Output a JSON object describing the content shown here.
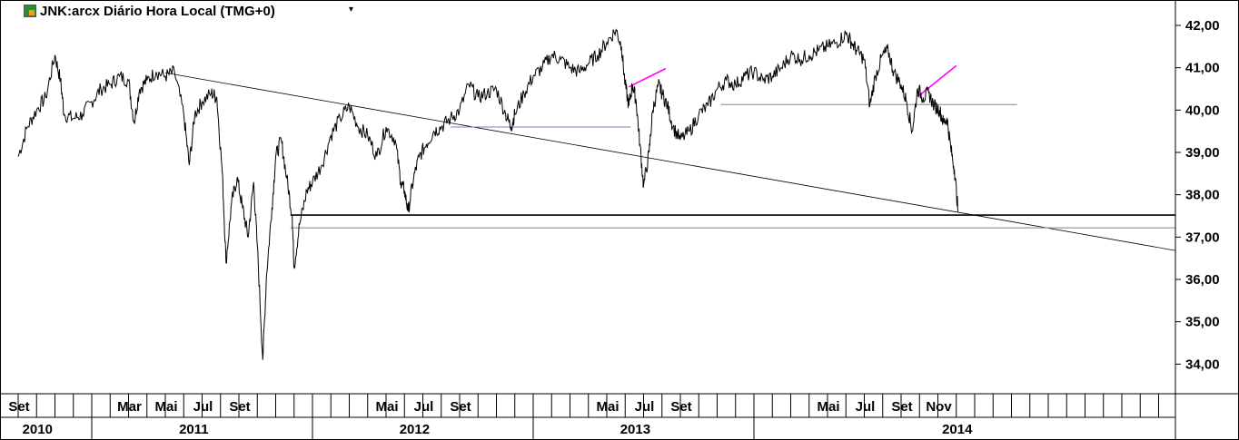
{
  "chart_data": {
    "type": "line",
    "title": "JNK:arcx Diário Hora Local (TMG+0)",
    "ylim": [
      33.3,
      42.6
    ],
    "y_ticks": [
      "34,00",
      "35,00",
      "36,00",
      "37,00",
      "38,00",
      "39,00",
      "40,00",
      "41,00",
      "42,00"
    ],
    "y_tick_values": [
      34,
      35,
      36,
      37,
      38,
      39,
      40,
      41,
      42
    ],
    "month_labels": [
      {
        "label": "Set",
        "t": 0.0
      },
      {
        "label": "Mar",
        "t": 6.0
      },
      {
        "label": "Mai",
        "t": 8.0
      },
      {
        "label": "Jul",
        "t": 10.0
      },
      {
        "label": "Set",
        "t": 12.0
      },
      {
        "label": "Mai",
        "t": 20.0
      },
      {
        "label": "Jul",
        "t": 22.0
      },
      {
        "label": "Set",
        "t": 24.0
      },
      {
        "label": "Mai",
        "t": 32.0
      },
      {
        "label": "Jul",
        "t": 34.0
      },
      {
        "label": "Set",
        "t": 36.0
      },
      {
        "label": "Mai",
        "t": 44.0
      },
      {
        "label": "Jul",
        "t": 46.0
      },
      {
        "label": "Set",
        "t": 48.0
      },
      {
        "label": "Nov",
        "t": 50.0
      }
    ],
    "year_labels": [
      {
        "label": "2010",
        "t": 1.0
      },
      {
        "label": "2011",
        "t": 9.5
      },
      {
        "label": "2012",
        "t": 21.5
      },
      {
        "label": "2013",
        "t": 33.5
      },
      {
        "label": "2014",
        "t": 51.0
      }
    ],
    "t_unit": "months since Sep 2010",
    "series": [
      {
        "color": "#000000",
        "points": [
          [
            0.0,
            38.9
          ],
          [
            0.5,
            39.6
          ],
          [
            1.0,
            40.0
          ],
          [
            1.5,
            40.3
          ],
          [
            2.0,
            41.3
          ],
          [
            2.3,
            40.7
          ],
          [
            2.5,
            39.9
          ],
          [
            3.0,
            39.8
          ],
          [
            3.5,
            39.9
          ],
          [
            4.0,
            40.2
          ],
          [
            4.5,
            40.5
          ],
          [
            5.0,
            40.6
          ],
          [
            5.5,
            40.8
          ],
          [
            6.0,
            40.7
          ],
          [
            6.3,
            39.7
          ],
          [
            6.6,
            40.5
          ],
          [
            7.0,
            40.7
          ],
          [
            7.5,
            40.9
          ],
          [
            8.0,
            40.8
          ],
          [
            8.5,
            40.9
          ],
          [
            9.0,
            39.9
          ],
          [
            9.3,
            38.7
          ],
          [
            9.6,
            39.9
          ],
          [
            10.0,
            40.2
          ],
          [
            10.5,
            40.4
          ],
          [
            10.8,
            40.3
          ],
          [
            11.1,
            38.5
          ],
          [
            11.3,
            36.4
          ],
          [
            11.6,
            37.8
          ],
          [
            11.9,
            38.4
          ],
          [
            12.2,
            37.7
          ],
          [
            12.5,
            37.0
          ],
          [
            12.8,
            38.3
          ],
          [
            13.0,
            36.8
          ],
          [
            13.3,
            34.1
          ],
          [
            13.5,
            36.1
          ],
          [
            13.8,
            37.7
          ],
          [
            14.0,
            38.9
          ],
          [
            14.3,
            39.3
          ],
          [
            14.6,
            38.4
          ],
          [
            14.9,
            37.5
          ],
          [
            15.0,
            36.3
          ],
          [
            15.3,
            37.3
          ],
          [
            15.7,
            38.1
          ],
          [
            16.0,
            38.3
          ],
          [
            16.5,
            38.7
          ],
          [
            17.0,
            39.4
          ],
          [
            17.5,
            39.8
          ],
          [
            18.0,
            40.1
          ],
          [
            18.5,
            39.6
          ],
          [
            19.0,
            39.4
          ],
          [
            19.5,
            38.9
          ],
          [
            20.0,
            39.6
          ],
          [
            20.5,
            39.3
          ],
          [
            20.8,
            38.3
          ],
          [
            21.0,
            38.1
          ],
          [
            21.2,
            37.6
          ],
          [
            21.5,
            38.4
          ],
          [
            21.8,
            38.9
          ],
          [
            22.2,
            39.2
          ],
          [
            22.6,
            39.5
          ],
          [
            23.0,
            39.6
          ],
          [
            23.5,
            39.8
          ],
          [
            24.0,
            40.0
          ],
          [
            24.5,
            40.6
          ],
          [
            25.0,
            40.3
          ],
          [
            25.5,
            40.4
          ],
          [
            26.0,
            40.5
          ],
          [
            26.5,
            39.9
          ],
          [
            26.8,
            39.6
          ],
          [
            27.0,
            39.9
          ],
          [
            27.5,
            40.4
          ],
          [
            28.0,
            40.8
          ],
          [
            28.5,
            41.0
          ],
          [
            29.0,
            41.3
          ],
          [
            29.5,
            41.2
          ],
          [
            30.0,
            41.0
          ],
          [
            30.5,
            40.9
          ],
          [
            31.0,
            41.1
          ],
          [
            31.5,
            41.3
          ],
          [
            32.0,
            41.6
          ],
          [
            32.5,
            41.9
          ],
          [
            32.8,
            41.5
          ],
          [
            33.0,
            40.6
          ],
          [
            33.2,
            40.1
          ],
          [
            33.4,
            40.6
          ],
          [
            33.6,
            40.2
          ],
          [
            33.8,
            39.2
          ],
          [
            34.0,
            38.2
          ],
          [
            34.3,
            39.0
          ],
          [
            34.5,
            40.0
          ],
          [
            34.8,
            40.6
          ],
          [
            35.0,
            40.4
          ],
          [
            35.3,
            40.1
          ],
          [
            35.6,
            39.6
          ],
          [
            36.0,
            39.3
          ],
          [
            36.5,
            39.5
          ],
          [
            37.0,
            39.9
          ],
          [
            37.5,
            40.1
          ],
          [
            38.0,
            40.5
          ],
          [
            38.5,
            40.7
          ],
          [
            39.0,
            40.6
          ],
          [
            39.5,
            40.8
          ],
          [
            40.0,
            40.9
          ],
          [
            40.5,
            40.7
          ],
          [
            41.0,
            40.8
          ],
          [
            41.5,
            41.0
          ],
          [
            42.0,
            41.3
          ],
          [
            42.5,
            41.2
          ],
          [
            43.0,
            41.3
          ],
          [
            43.5,
            41.4
          ],
          [
            44.0,
            41.5
          ],
          [
            44.5,
            41.6
          ],
          [
            45.0,
            41.8
          ],
          [
            45.3,
            41.6
          ],
          [
            45.6,
            41.4
          ],
          [
            46.0,
            41.2
          ],
          [
            46.3,
            40.1
          ],
          [
            46.6,
            40.8
          ],
          [
            47.0,
            41.3
          ],
          [
            47.3,
            41.4
          ],
          [
            47.6,
            40.9
          ],
          [
            48.0,
            40.6
          ],
          [
            48.3,
            40.2
          ],
          [
            48.6,
            39.5
          ],
          [
            48.9,
            40.5
          ],
          [
            49.2,
            40.3
          ],
          [
            49.5,
            40.4
          ],
          [
            49.8,
            40.1
          ],
          [
            50.1,
            40.0
          ],
          [
            50.3,
            39.7
          ],
          [
            50.5,
            39.8
          ],
          [
            50.7,
            39.1
          ],
          [
            50.9,
            38.6
          ],
          [
            51.1,
            37.6
          ]
        ]
      }
    ],
    "overlays": [
      {
        "name": "trendline",
        "color": "#000000",
        "width": 0.8,
        "from": [
          8.0,
          40.88
        ],
        "to": [
          64.0,
          36.6
        ]
      },
      {
        "name": "support-thick",
        "color": "#000000",
        "width": 1.6,
        "from": [
          14.8,
          37.52
        ],
        "to": [
          64.0,
          37.52
        ]
      },
      {
        "name": "support-thin",
        "color": "#808080",
        "width": 1.0,
        "from": [
          14.8,
          37.22
        ],
        "to": [
          64.0,
          37.22
        ]
      },
      {
        "name": "resistance-2012",
        "color": "#7f7fbf",
        "width": 1.0,
        "from": [
          23.5,
          39.6
        ],
        "to": [
          33.3,
          39.6
        ]
      },
      {
        "name": "resistance-2013",
        "color": "#7f7fbf",
        "width": 1.0,
        "from": [
          38.2,
          40.13
        ],
        "to": [
          54.3,
          40.13
        ]
      },
      {
        "name": "magenta-1",
        "color": "#ff00ff",
        "width": 1.6,
        "from": [
          33.2,
          40.55
        ],
        "to": [
          35.2,
          40.98
        ]
      },
      {
        "name": "magenta-2",
        "color": "#ff00ff",
        "width": 1.6,
        "from": [
          49.0,
          40.35
        ],
        "to": [
          51.0,
          41.05
        ]
      }
    ]
  }
}
